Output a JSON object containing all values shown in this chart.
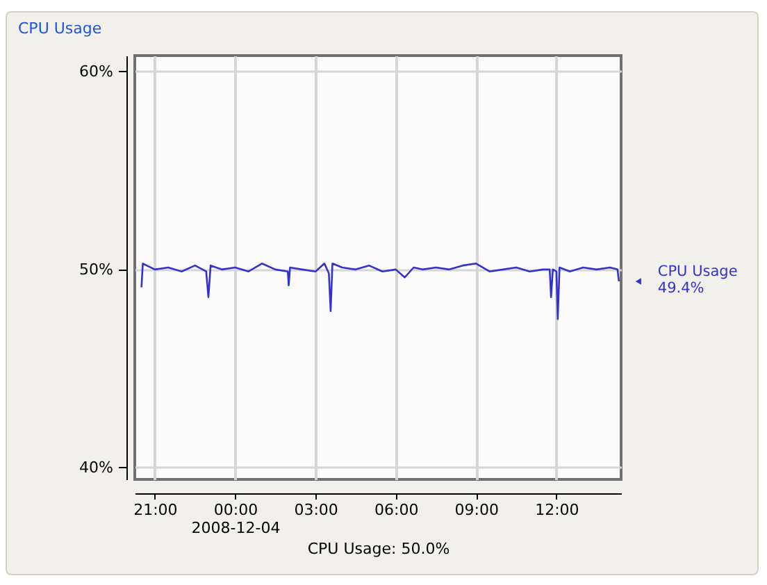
{
  "chart_data": {
    "type": "line",
    "title": "CPU Usage",
    "x": [
      "2008-12-03T20:30",
      "2008-12-03T20:33",
      "2008-12-03T21:00",
      "2008-12-03T21:30",
      "2008-12-03T22:00",
      "2008-12-03T22:30",
      "2008-12-03T22:55",
      "2008-12-03T23:00",
      "2008-12-03T23:05",
      "2008-12-03T23:30",
      "2008-12-04T00:00",
      "2008-12-04T00:30",
      "2008-12-04T01:00",
      "2008-12-04T01:30",
      "2008-12-04T01:58",
      "2008-12-04T02:00",
      "2008-12-04T02:03",
      "2008-12-04T02:30",
      "2008-12-04T03:00",
      "2008-12-04T03:20",
      "2008-12-04T03:30",
      "2008-12-04T03:34",
      "2008-12-04T03:38",
      "2008-12-04T04:00",
      "2008-12-04T04:30",
      "2008-12-04T05:00",
      "2008-12-04T05:30",
      "2008-12-04T06:00",
      "2008-12-04T06:20",
      "2008-12-04T06:40",
      "2008-12-04T07:00",
      "2008-12-04T07:30",
      "2008-12-04T08:00",
      "2008-12-04T08:30",
      "2008-12-04T09:00",
      "2008-12-04T09:30",
      "2008-12-04T10:00",
      "2008-12-04T10:30",
      "2008-12-04T11:00",
      "2008-12-04T11:30",
      "2008-12-04T11:45",
      "2008-12-04T11:48",
      "2008-12-04T11:52",
      "2008-12-04T12:00",
      "2008-12-04T12:03",
      "2008-12-04T12:07",
      "2008-12-04T12:30",
      "2008-12-04T13:00",
      "2008-12-04T13:30",
      "2008-12-04T14:00",
      "2008-12-04T14:17",
      "2008-12-04T14:20"
    ],
    "series": [
      {
        "name": "CPU Usage",
        "color": "#3333cc",
        "values": [
          49.1,
          50.3,
          50.0,
          50.1,
          49.9,
          50.2,
          49.9,
          48.6,
          50.2,
          50.0,
          50.1,
          49.9,
          50.3,
          50.0,
          49.9,
          49.2,
          50.1,
          50.0,
          49.9,
          50.3,
          49.8,
          47.9,
          50.3,
          50.1,
          50.0,
          50.2,
          49.9,
          50.0,
          49.6,
          50.1,
          50.0,
          50.1,
          50.0,
          50.2,
          50.3,
          49.9,
          50.0,
          50.1,
          49.9,
          50.0,
          50.0,
          48.6,
          50.0,
          49.9,
          47.5,
          50.1,
          49.9,
          50.1,
          50.0,
          50.1,
          50.0,
          49.4
        ]
      }
    ],
    "xlim": [
      "2008-12-03T20:15",
      "2008-12-04T14:25"
    ],
    "xticks": [
      {
        "value": "2008-12-03T21:00",
        "label": "21:00"
      },
      {
        "value": "2008-12-04T00:00",
        "label": "00:00\n2008-12-04"
      },
      {
        "value": "2008-12-04T03:00",
        "label": "03:00"
      },
      {
        "value": "2008-12-04T06:00",
        "label": "06:00"
      },
      {
        "value": "2008-12-04T09:00",
        "label": "09:00"
      },
      {
        "value": "2008-12-04T12:00",
        "label": "12:00"
      }
    ],
    "ylim": [
      39.4,
      60.8
    ],
    "yticks": [
      {
        "value": 40,
        "label": "40%"
      },
      {
        "value": 50,
        "label": "50%"
      },
      {
        "value": 60,
        "label": "60%"
      }
    ],
    "grid": true,
    "marker": "none",
    "line_style": "solid",
    "annotations": [
      {
        "text": "49.4%",
        "x": "2008-12-04T14:20",
        "y": 49.4
      },
      "CPU Usage: 50.0%"
    ]
  }
}
